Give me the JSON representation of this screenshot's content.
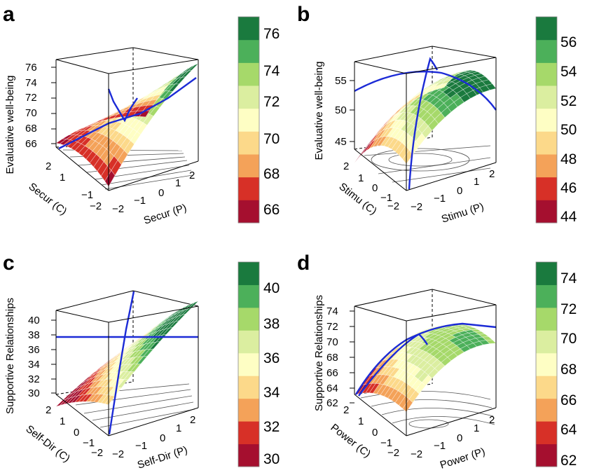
{
  "palette": [
    "#a50f2f",
    "#d73027",
    "#f4a259",
    "#fcd98a",
    "#fefec4",
    "#dbeea0",
    "#a6d96a",
    "#4cb05a",
    "#1a7a3e"
  ],
  "line_color": "#1c2bd6",
  "chart_data": [
    {
      "id": "a",
      "type": "surface3d",
      "letter": "a",
      "zlabel": "Evaluative well-being",
      "xlabel": "Secur (P)",
      "ylabel": "Secur (C)",
      "ticks_p": [
        "−2",
        "−1",
        "0",
        "1",
        "2"
      ],
      "ticks_c": [
        "2",
        "1",
        "−1",
        "−2"
      ],
      "zticks": [
        "76",
        "74",
        "72",
        "70",
        "68",
        "66"
      ],
      "zrange": [
        65,
        76
      ],
      "colorbar": [
        "76",
        "74",
        "72",
        "70",
        "68",
        "66"
      ]
    },
    {
      "id": "b",
      "type": "surface3d",
      "letter": "b",
      "zlabel": "Evaluative well-being",
      "xlabel": "Stimu (P)",
      "ylabel": "Stimu (C)",
      "ticks_p": [
        "−2",
        "−1",
        "0",
        "1",
        "2"
      ],
      "ticks_c": [
        "2",
        "1",
        "0",
        "−1",
        "−2"
      ],
      "zticks": [
        "55",
        "50",
        "45"
      ],
      "zrange": [
        43,
        58
      ],
      "colorbar": [
        "56",
        "54",
        "52",
        "50",
        "48",
        "46",
        "44"
      ]
    },
    {
      "id": "c",
      "type": "surface3d",
      "letter": "c",
      "zlabel": "Supportive Relationships",
      "xlabel": "Self-Dir (P)",
      "ylabel": "Self-Dir (C)",
      "ticks_p": [
        "−2",
        "−1",
        "0",
        "1",
        "2"
      ],
      "ticks_c": [
        "2",
        "1",
        "0",
        "−1",
        "−2"
      ],
      "zticks": [
        "40",
        "38",
        "36",
        "34",
        "32",
        "30"
      ],
      "zrange": [
        29,
        41
      ],
      "colorbar": [
        "40",
        "38",
        "36",
        "34",
        "32",
        "30"
      ]
    },
    {
      "id": "d",
      "type": "surface3d",
      "letter": "d",
      "zlabel": "Supportive Relationships",
      "xlabel": "Power (P)",
      "ylabel": "Power (C)",
      "ticks_p": [
        "−2",
        "−1",
        "0",
        "1",
        "2"
      ],
      "ticks_c": [
        "2",
        "1",
        "0",
        "−1",
        "−2"
      ],
      "zticks": [
        "74",
        "72",
        "70",
        "68",
        "66",
        "64",
        "62"
      ],
      "zrange": [
        61,
        75
      ],
      "colorbar": [
        "74",
        "72",
        "70",
        "68",
        "66",
        "64",
        "62"
      ]
    }
  ]
}
